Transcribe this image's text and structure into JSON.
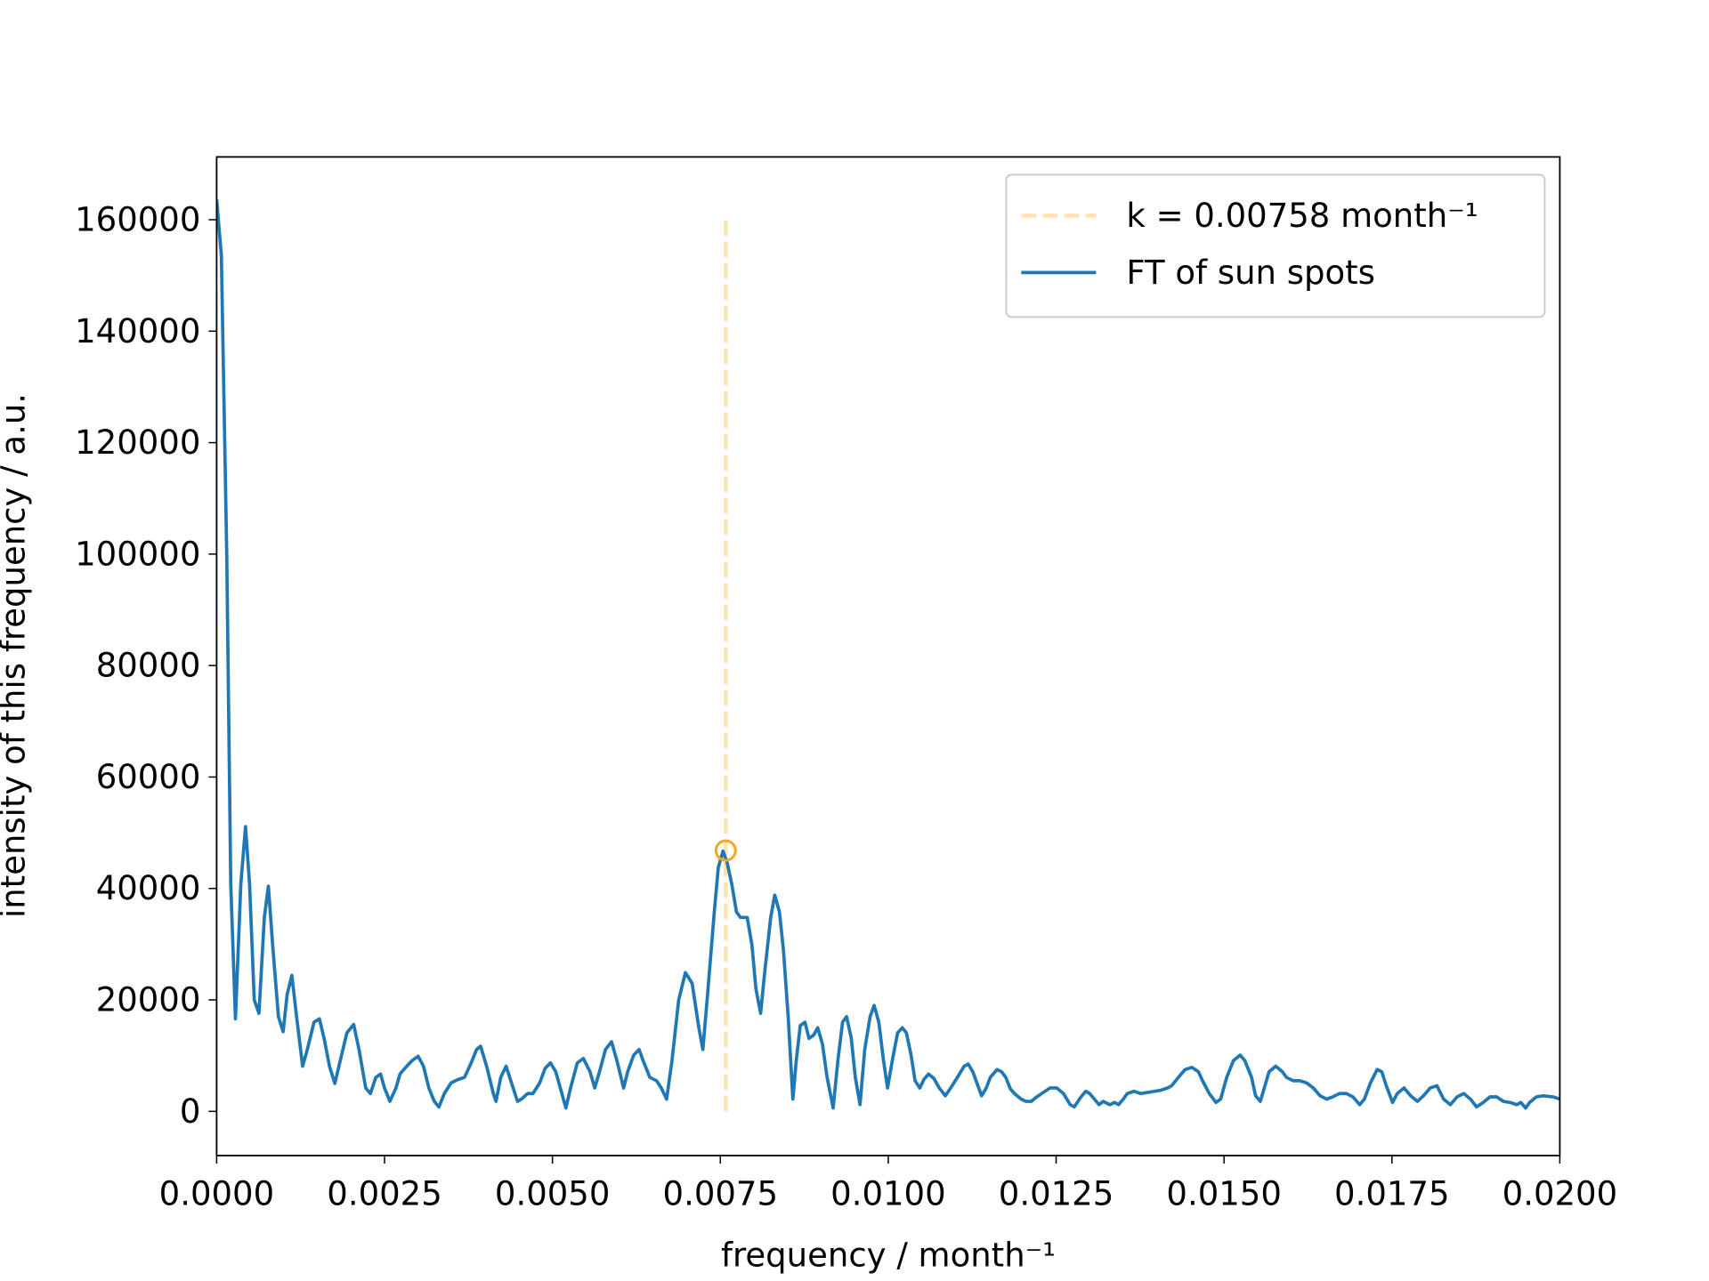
{
  "chart_data": {
    "type": "line",
    "xlabel": "frequency / month⁻¹",
    "ylabel": "intensity of this frequency / a.u.",
    "xlim": [
      0,
      0.02
    ],
    "ylim": [
      -7930,
      171270
    ],
    "xticks": [
      {
        "value": 0,
        "label": "0.0000"
      },
      {
        "value": 0.0025,
        "label": "0.0025"
      },
      {
        "value": 0.005,
        "label": "0.0050"
      },
      {
        "value": 0.0075,
        "label": "0.0075"
      },
      {
        "value": 0.01,
        "label": "0.0100"
      },
      {
        "value": 0.0125,
        "label": "0.0125"
      },
      {
        "value": 0.015,
        "label": "0.0150"
      },
      {
        "value": 0.0175,
        "label": "0.0175"
      },
      {
        "value": 0.02,
        "label": "0.0200"
      }
    ],
    "yticks": [
      0,
      20000,
      40000,
      60000,
      80000,
      100000,
      120000,
      140000,
      160000
    ],
    "legend": "upper right",
    "vlines": [
      {
        "name": "k = 0.00758 month⁻¹",
        "x": 0.00758,
        "ymin": 0,
        "ymax": 160000,
        "color": "#fde3b1",
        "linestyle": "dashed"
      }
    ],
    "markers": [
      {
        "x": 0.00758,
        "y": 46800,
        "color": "#f5a623"
      }
    ],
    "series": [
      {
        "name": "FT of sun spots",
        "color": "#1f77b4",
        "x": [
          0,
          7e-05,
          0.00015,
          0.00021,
          0.00028,
          0.00036,
          0.00043,
          0.00049,
          0.00056,
          0.00063,
          0.00071,
          0.00077,
          0.00084,
          0.00092,
          0.00099,
          0.00105,
          0.00112,
          0.00119,
          0.00128,
          0.00135,
          0.00145,
          0.00153,
          0.0016,
          0.00168,
          0.00176,
          0.00184,
          0.00194,
          0.00204,
          0.00212,
          0.00222,
          0.00229,
          0.00237,
          0.00244,
          0.0025,
          0.00258,
          0.00267,
          0.00273,
          0.00283,
          0.00291,
          0.003,
          0.00308,
          0.00316,
          0.00324,
          0.00331,
          0.00339,
          0.00349,
          0.00359,
          0.00369,
          0.00379,
          0.00387,
          0.00393,
          0.00402,
          0.00412,
          0.00416,
          0.00423,
          0.00431,
          0.00439,
          0.00448,
          0.00454,
          0.00463,
          0.00471,
          0.00481,
          0.00489,
          0.00497,
          0.00505,
          0.00514,
          0.0052,
          0.00527,
          0.00537,
          0.00546,
          0.00556,
          0.00563,
          0.0057,
          0.00579,
          0.00588,
          0.00596,
          0.00606,
          0.00612,
          0.00621,
          0.00629,
          0.00635,
          0.00645,
          0.00655,
          0.00662,
          0.0067,
          0.00678,
          0.00688,
          0.00698,
          0.00708,
          0.00718,
          0.00724,
          0.00731,
          0.00741,
          0.00747,
          0.00754,
          0.0076,
          0.00767,
          0.00774,
          0.0078,
          0.0079,
          0.00797,
          0.00803,
          0.0081,
          0.00816,
          0.00825,
          0.00831,
          0.00838,
          0.00844,
          0.00851,
          0.00858,
          0.00863,
          0.00869,
          0.00876,
          0.00882,
          0.00889,
          0.00895,
          0.00902,
          0.00909,
          0.00918,
          0.00925,
          0.00932,
          0.00938,
          0.00945,
          0.00951,
          0.00958,
          0.00965,
          0.00973,
          0.00979,
          0.00986,
          0.00993,
          0.00999,
          0.01006,
          0.01014,
          0.01021,
          0.01027,
          0.01034,
          0.0104,
          0.01047,
          0.01053,
          0.0106,
          0.01068,
          0.01076,
          0.01085,
          0.01093,
          0.01103,
          0.01113,
          0.01119,
          0.01126,
          0.01132,
          0.01139,
          0.01146,
          0.01152,
          0.01162,
          0.01169,
          0.01175,
          0.01182,
          0.01188,
          0.01198,
          0.01205,
          0.01213,
          0.01221,
          0.01231,
          0.01241,
          0.01251,
          0.01261,
          0.01271,
          0.01277,
          0.01287,
          0.01294,
          0.013,
          0.01307,
          0.01314,
          0.0132,
          0.0133,
          0.01337,
          0.01343,
          0.0135,
          0.01356,
          0.01366,
          0.01376,
          0.01386,
          0.01396,
          0.01406,
          0.01416,
          0.01422,
          0.01432,
          0.01442,
          0.01452,
          0.01462,
          0.01468,
          0.01478,
          0.01488,
          0.01495,
          0.01504,
          0.01514,
          0.01524,
          0.01531,
          0.01541,
          0.01547,
          0.01554,
          0.0156,
          0.01567,
          0.01577,
          0.01587,
          0.01593,
          0.01603,
          0.01613,
          0.01623,
          0.01633,
          0.01643,
          0.01653,
          0.01662,
          0.01672,
          0.01682,
          0.01692,
          0.01702,
          0.01709,
          0.01718,
          0.01728,
          0.01735,
          0.01741,
          0.01751,
          0.01758,
          0.01768,
          0.01778,
          0.01788,
          0.01797,
          0.01807,
          0.01817,
          0.01827,
          0.01837,
          0.01847,
          0.01857,
          0.01867,
          0.01876,
          0.01886,
          0.01896,
          0.01906,
          0.01916,
          0.01926,
          0.01936,
          0.01942,
          0.01949,
          0.01955,
          0.01965,
          0.01975,
          0.0199,
          0.02
        ],
        "values": [
          163600,
          153600,
          100200,
          40800,
          16600,
          40800,
          51100,
          40800,
          20000,
          17600,
          34800,
          40400,
          28900,
          17000,
          14300,
          21000,
          24400,
          17000,
          8100,
          11100,
          16000,
          16600,
          13100,
          8100,
          5000,
          9100,
          14100,
          15600,
          11100,
          4200,
          3200,
          6100,
          6700,
          4200,
          1800,
          4200,
          6700,
          8100,
          9100,
          9900,
          8100,
          4200,
          1800,
          800,
          3200,
          5100,
          5700,
          6100,
          8700,
          11100,
          11700,
          8100,
          3200,
          1800,
          6100,
          8100,
          5100,
          1800,
          2200,
          3200,
          3200,
          5100,
          7700,
          8700,
          7100,
          3200,
          600,
          4200,
          8700,
          9500,
          7100,
          4200,
          7100,
          11100,
          12500,
          9100,
          4200,
          7100,
          10100,
          11100,
          9100,
          6100,
          5500,
          4200,
          2200,
          9100,
          20000,
          24900,
          23000,
          15000,
          11100,
          21000,
          35800,
          43800,
          46700,
          44700,
          40800,
          35800,
          34800,
          34800,
          29900,
          22000,
          17600,
          24900,
          34800,
          38800,
          35800,
          28900,
          17000,
          2200,
          9100,
          15400,
          16000,
          13100,
          13700,
          15000,
          12100,
          6100,
          600,
          9100,
          16000,
          17000,
          13100,
          6100,
          1200,
          11100,
          17000,
          19000,
          16000,
          9100,
          4200,
          9100,
          14100,
          15000,
          14100,
          10100,
          5500,
          4200,
          5700,
          6700,
          5900,
          4200,
          2800,
          4200,
          6100,
          8100,
          8500,
          7100,
          5100,
          2800,
          4200,
          6100,
          7500,
          7100,
          6100,
          4000,
          3200,
          2200,
          1800,
          1800,
          2600,
          3400,
          4200,
          4200,
          3200,
          1200,
          800,
          2600,
          3600,
          3200,
          2200,
          1200,
          1800,
          1200,
          1600,
          1200,
          2200,
          3200,
          3600,
          3200,
          3400,
          3600,
          3800,
          4200,
          4600,
          6100,
          7500,
          7900,
          7100,
          5500,
          3200,
          1600,
          2200,
          6100,
          9100,
          10100,
          9100,
          6100,
          2800,
          1800,
          4200,
          7100,
          8100,
          7100,
          6100,
          5500,
          5500,
          5100,
          4200,
          2800,
          2200,
          2600,
          3200,
          3200,
          2600,
          1200,
          2200,
          5100,
          7500,
          7100,
          4800,
          1600,
          3200,
          4200,
          2800,
          1800,
          2800,
          4200,
          4600,
          2200,
          1200,
          2600,
          3200,
          2200,
          800,
          1600,
          2600,
          2600,
          1800,
          1600,
          1200,
          1600,
          600,
          1600,
          2600,
          2800,
          2600,
          2200
        ]
      }
    ]
  }
}
